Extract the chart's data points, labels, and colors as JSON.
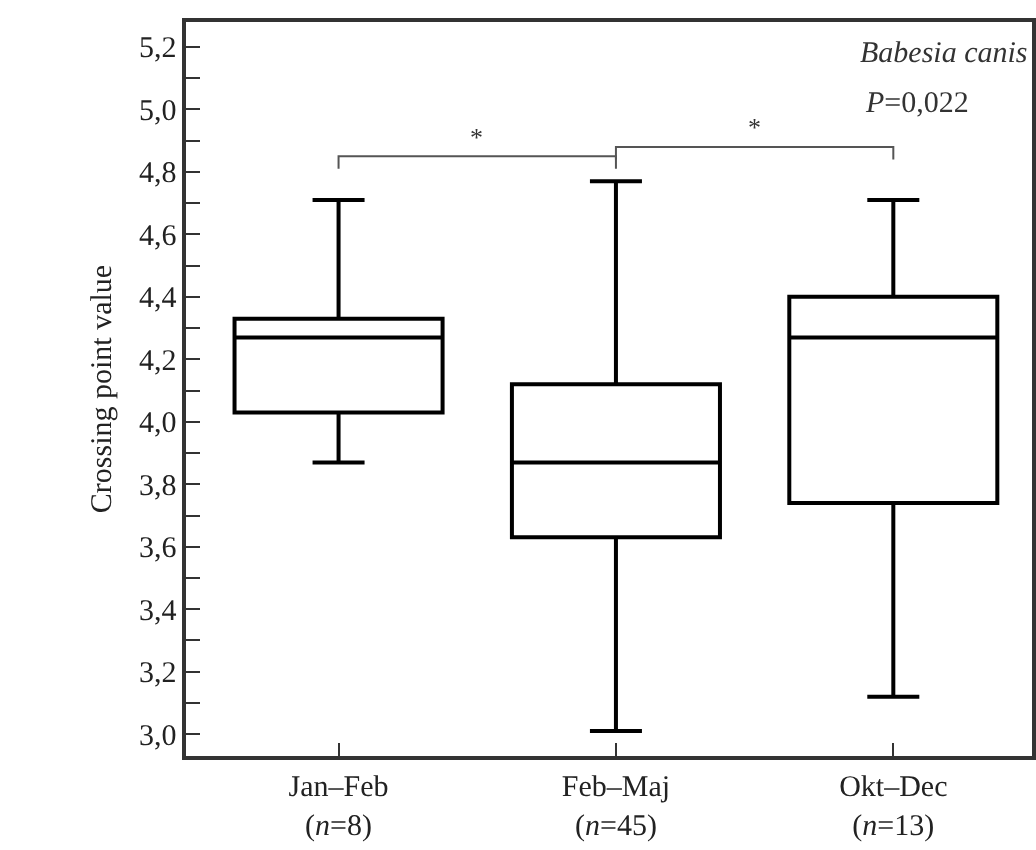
{
  "chart_data": {
    "type": "box",
    "ylabel": "Crossing point value",
    "categories": [
      "Jan–Feb\n(n=8)",
      "Feb–Maj\n(n=45)",
      "Okt–Dec\n(n=13)"
    ],
    "boxes": [
      {
        "low": 3.87,
        "q1": 4.03,
        "median": 4.27,
        "q3": 4.33,
        "high": 4.71
      },
      {
        "low": 3.01,
        "q1": 3.63,
        "median": 3.87,
        "q3": 4.12,
        "high": 4.77
      },
      {
        "low": 3.12,
        "q1": 3.74,
        "median": 4.27,
        "q3": 4.4,
        "high": 4.71
      }
    ],
    "color": "#000000",
    "ylim": [
      2.93,
      5.28
    ],
    "yticks": [
      {
        "value": 3.0,
        "label": "3,0"
      },
      {
        "value": 3.1,
        "label": null
      },
      {
        "value": 3.2,
        "label": "3,2"
      },
      {
        "value": 3.3,
        "label": null
      },
      {
        "value": 3.4,
        "label": "3,4"
      },
      {
        "value": 3.5,
        "label": null
      },
      {
        "value": 3.6,
        "label": "3,6"
      },
      {
        "value": 3.7,
        "label": null
      },
      {
        "value": 3.8,
        "label": "3,8"
      },
      {
        "value": 3.9,
        "label": null
      },
      {
        "value": 4.0,
        "label": "4,0"
      },
      {
        "value": 4.1,
        "label": null
      },
      {
        "value": 4.2,
        "label": "4,2"
      },
      {
        "value": 4.3,
        "label": null
      },
      {
        "value": 4.4,
        "label": "4,4"
      },
      {
        "value": 4.5,
        "label": null
      },
      {
        "value": 4.6,
        "label": "4,6"
      },
      {
        "value": 4.7,
        "label": null
      },
      {
        "value": 4.8,
        "label": "4,8"
      },
      {
        "value": 4.9,
        "label": null
      },
      {
        "value": 5.0,
        "label": "5,0"
      },
      {
        "value": 5.1,
        "label": null
      },
      {
        "value": 5.2,
        "label": "5,2"
      }
    ],
    "annotations": [
      "Babesia canis",
      "P=0,022",
      "*",
      "*"
    ],
    "grid": false,
    "legend": false
  }
}
